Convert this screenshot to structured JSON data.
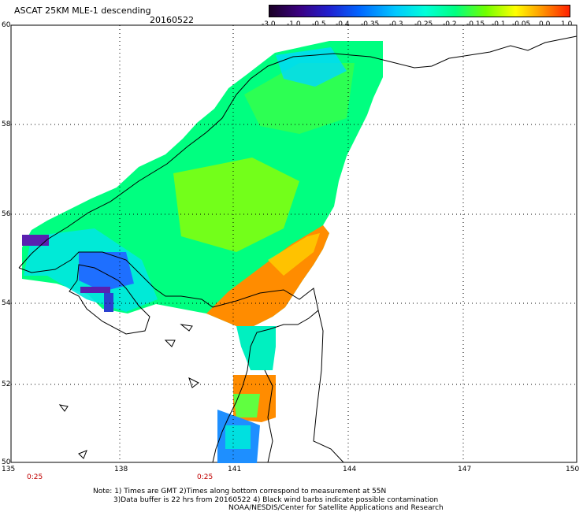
{
  "header": {
    "title": "ASCAT 25KM MLE-1 descending",
    "date": "20160522"
  },
  "colorbar": {
    "labels": [
      "-3.0",
      "-1.0",
      "-0.5",
      "-0.4",
      "-0.35",
      "-0.3",
      "-0.25",
      "-0.2",
      "-0.15",
      "-0.1",
      "-0.05",
      "0.0",
      "1.0"
    ]
  },
  "axes": {
    "lat_labels": [
      "60",
      "58",
      "56",
      "54",
      "52",
      "50"
    ],
    "lon_labels": [
      "135",
      "138",
      "141",
      "144",
      "147",
      "150"
    ],
    "time_labels": [
      "0:25",
      "0:25"
    ]
  },
  "notes": {
    "line1": "Note: 1) Times are GMT 2)Times along bottom correspond to measurement at 55N",
    "line2": "3)Data buffer is 22 hrs from 20160522 4) Black wind barbs indicate possible contamination",
    "line3": "NOAA/NESDIS/Center for Satellite Applications and Research"
  },
  "colors": {
    "low": "#3a0080",
    "mid": "#00ff80",
    "high": "#ff8000",
    "time_label": "#c00000"
  }
}
